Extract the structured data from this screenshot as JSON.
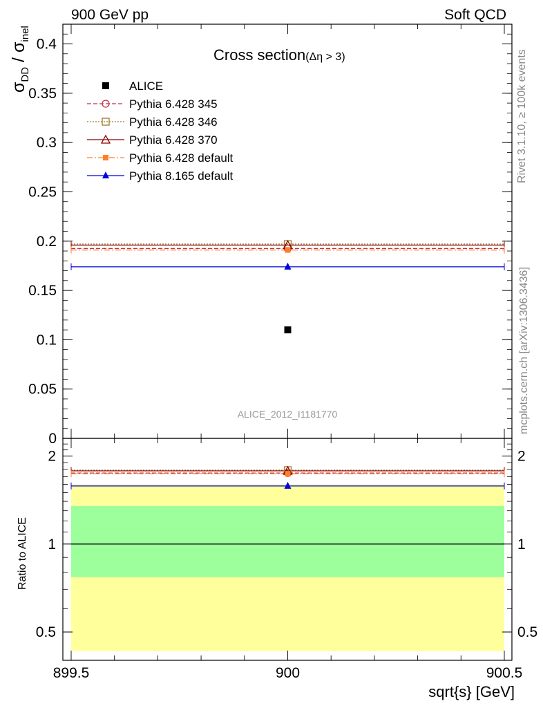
{
  "header": {
    "left": "900 GeV pp",
    "right": "Soft QCD"
  },
  "side_labels": {
    "rivet": "Rivet 3.1.10, ≥ 100k events",
    "mcplots": "mcplots.cern.ch [arXiv:1306.3436]"
  },
  "analysis_id": "ALICE_2012_I1181770",
  "colors": {
    "alice": "#000000",
    "p345": "#c0304a",
    "p346": "#9a7a2a",
    "p370": "#8b0000",
    "p6def": "#ff7f27",
    "p8def": "#0000dd",
    "band_inner": "#9cff9c",
    "band_outer": "#ffff9c"
  },
  "chart_data": [
    {
      "type": "scatter",
      "panel": "main",
      "title": "Cross section",
      "title_suffix": "(Δη > 3)",
      "ylabel_parts": [
        "σ",
        "DD",
        " / σ",
        "inel"
      ],
      "xlim": [
        899.5,
        900.5
      ],
      "ylim": [
        0,
        0.42
      ],
      "yticks": [
        0,
        0.05,
        0.1,
        0.15,
        0.2,
        0.25,
        0.3,
        0.35,
        0.4
      ],
      "ytick_labels": [
        "0",
        "0.05",
        "0.1",
        "0.15",
        "0.2",
        "0.25",
        "0.3",
        "0.35",
        "0.4"
      ],
      "legend_position": "top-left",
      "series": [
        {
          "name": "ALICE",
          "key": "alice",
          "x": [
            900
          ],
          "values": [
            0.11
          ],
          "marker": "filled-square",
          "line": "none"
        },
        {
          "name": "Pythia 6.428 345",
          "key": "p345",
          "x": [
            900
          ],
          "values": [
            0.1925
          ],
          "marker": "open-circle",
          "line": "dashed"
        },
        {
          "name": "Pythia 6.428 346",
          "key": "p346",
          "x": [
            900
          ],
          "values": [
            0.197
          ],
          "marker": "open-square",
          "line": "dotted"
        },
        {
          "name": "Pythia 6.428 370",
          "key": "p370",
          "x": [
            900
          ],
          "values": [
            0.196
          ],
          "marker": "open-triangle",
          "line": "solid"
        },
        {
          "name": "Pythia 6.428 default",
          "key": "p6def",
          "x": [
            900
          ],
          "values": [
            0.191
          ],
          "marker": "filled-square-small",
          "line": "dashdot"
        },
        {
          "name": "Pythia 8.165 default",
          "key": "p8def",
          "x": [
            900
          ],
          "values": [
            0.174
          ],
          "marker": "filled-triangle",
          "line": "solid"
        }
      ]
    },
    {
      "type": "scatter",
      "panel": "ratio",
      "ylabel": "Ratio to ALICE",
      "xlabel": "sqrt{s} [GeV]",
      "xlim": [
        899.5,
        900.5
      ],
      "xticks": [
        899.5,
        900,
        900.5
      ],
      "xtick_labels": [
        "899.5",
        "900",
        "900.5"
      ],
      "ylim": [
        0.4,
        2.3
      ],
      "yticks": [
        0.5,
        1,
        2
      ],
      "ytick_labels": [
        "0.5",
        "1",
        "2"
      ],
      "reference": 1,
      "band_inner": [
        0.77,
        1.35
      ],
      "band_outer": [
        0.43,
        1.6
      ],
      "series": [
        {
          "key": "p345",
          "values": [
            1.75
          ]
        },
        {
          "key": "p346",
          "values": [
            1.79
          ]
        },
        {
          "key": "p370",
          "values": [
            1.78
          ]
        },
        {
          "key": "p6def",
          "values": [
            1.74
          ]
        },
        {
          "key": "p8def",
          "values": [
            1.58
          ]
        }
      ]
    }
  ]
}
